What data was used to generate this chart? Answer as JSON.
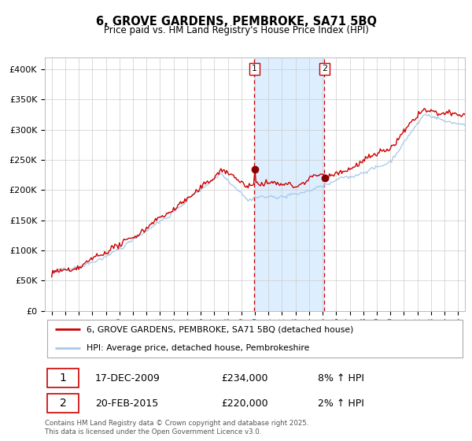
{
  "title1": "6, GROVE GARDENS, PEMBROKE, SA71 5BQ",
  "title2": "Price paid vs. HM Land Registry's House Price Index (HPI)",
  "legend_label1": "6, GROVE GARDENS, PEMBROKE, SA71 5BQ (detached house)",
  "legend_label2": "HPI: Average price, detached house, Pembrokeshire",
  "sale1_date": "17-DEC-2009",
  "sale1_price": 234000,
  "sale1_pct": "8% ↑ HPI",
  "sale2_date": "20-FEB-2015",
  "sale2_price": 220000,
  "sale2_pct": "2% ↑ HPI",
  "sale1_year": 2009.96,
  "sale2_year": 2015.13,
  "hpi_line_color": "#a8c8e8",
  "property_line_color": "#cc0000",
  "sale_dot_color": "#880000",
  "vline_color": "#cc0000",
  "shade_color": "#ddeeff",
  "grid_color": "#cccccc",
  "background_color": "#ffffff",
  "footnote": "Contains HM Land Registry data © Crown copyright and database right 2025.\nThis data is licensed under the Open Government Licence v3.0.",
  "ylim": [
    0,
    420000
  ],
  "yticks": [
    0,
    50000,
    100000,
    150000,
    200000,
    250000,
    300000,
    350000,
    400000
  ],
  "start_year": 1995,
  "end_year": 2025
}
